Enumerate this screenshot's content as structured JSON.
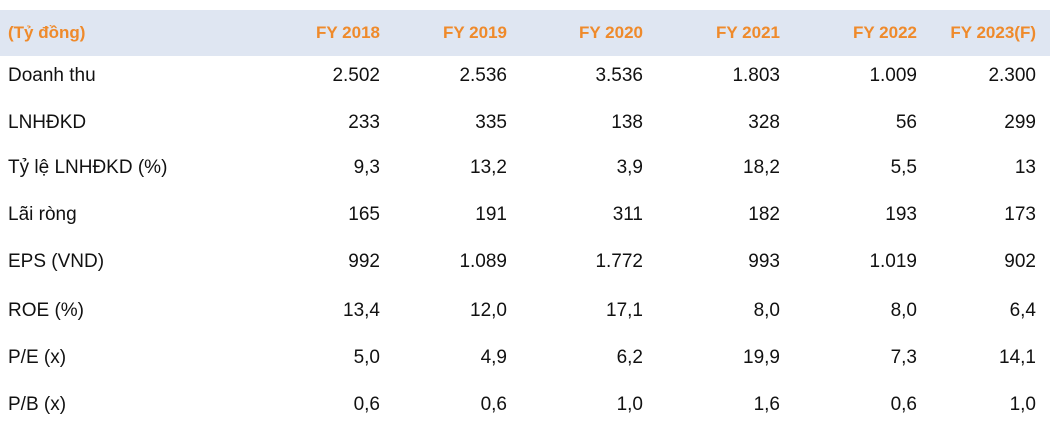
{
  "header": {
    "unit_label": "(Tỷ đồng)",
    "years": [
      "FY 2018",
      "FY 2019",
      "FY 2020",
      "FY 2021",
      "FY 2022",
      "FY 2023(F)"
    ]
  },
  "rows": [
    {
      "label": "Doanh thu",
      "values": [
        "2.502",
        "2.536",
        "3.536",
        "1.803",
        "1.009",
        "2.300"
      ]
    },
    {
      "label": "LNHĐKD",
      "values": [
        "233",
        "335",
        "138",
        "328",
        "56",
        "299"
      ]
    },
    {
      "label": "Tỷ lệ LNHĐKD (%)",
      "values": [
        "9,3",
        "13,2",
        "3,9",
        "18,2",
        "5,5",
        "13"
      ]
    },
    {
      "label": "Lãi ròng",
      "values": [
        "165",
        "191",
        "311",
        "182",
        "193",
        "173"
      ]
    },
    {
      "label": "EPS (VND)",
      "values": [
        "992",
        "1.089",
        "1.772",
        "993",
        "1.019",
        "902"
      ]
    },
    {
      "label": "ROE (%)",
      "values": [
        "13,4",
        "12,0",
        "17,1",
        "8,0",
        "8,0",
        "6,4"
      ]
    },
    {
      "label": "P/E (x)",
      "values": [
        "5,0",
        "4,9",
        "6,2",
        "19,9",
        "7,3",
        "14,1"
      ]
    },
    {
      "label": "P/B (x)",
      "values": [
        "0,6",
        "0,6",
        "1,0",
        "1,6",
        "0,6",
        "1,0"
      ]
    }
  ],
  "colors": {
    "header_bg": "#dfe6f2",
    "header_text": "#ef8a2b",
    "body_text": "#111111"
  }
}
